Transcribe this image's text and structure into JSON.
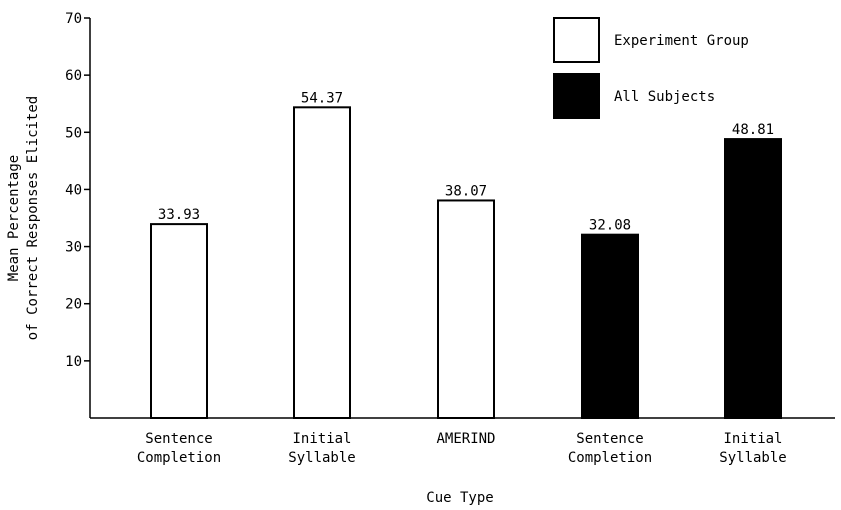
{
  "chart_data": {
    "type": "bar",
    "title": "",
    "xlabel": "Cue Type",
    "ylabel": [
      "Mean Percentage",
      "of Correct Responses Elicited"
    ],
    "ylim": [
      0,
      70
    ],
    "yticks": [
      10,
      20,
      30,
      40,
      50,
      60,
      70
    ],
    "grid": false,
    "legend_position": "top-right",
    "series": [
      {
        "name": "Experiment Group",
        "color": "#ffffff",
        "points": [
          {
            "category": [
              "Sentence",
              "Completion"
            ],
            "value": 33.93,
            "label": "33.93"
          },
          {
            "category": [
              "Initial",
              "Syllable"
            ],
            "value": 54.37,
            "label": "54.37"
          },
          {
            "category": [
              "AMERIND"
            ],
            "value": 38.07,
            "label": "38.07"
          }
        ]
      },
      {
        "name": "All Subjects",
        "color": "#000000",
        "points": [
          {
            "category": [
              "Sentence",
              "Completion"
            ],
            "value": 32.08,
            "label": "32.08"
          },
          {
            "category": [
              "Initial",
              "Syllable"
            ],
            "value": 48.81,
            "label": "48.81"
          }
        ]
      }
    ]
  }
}
